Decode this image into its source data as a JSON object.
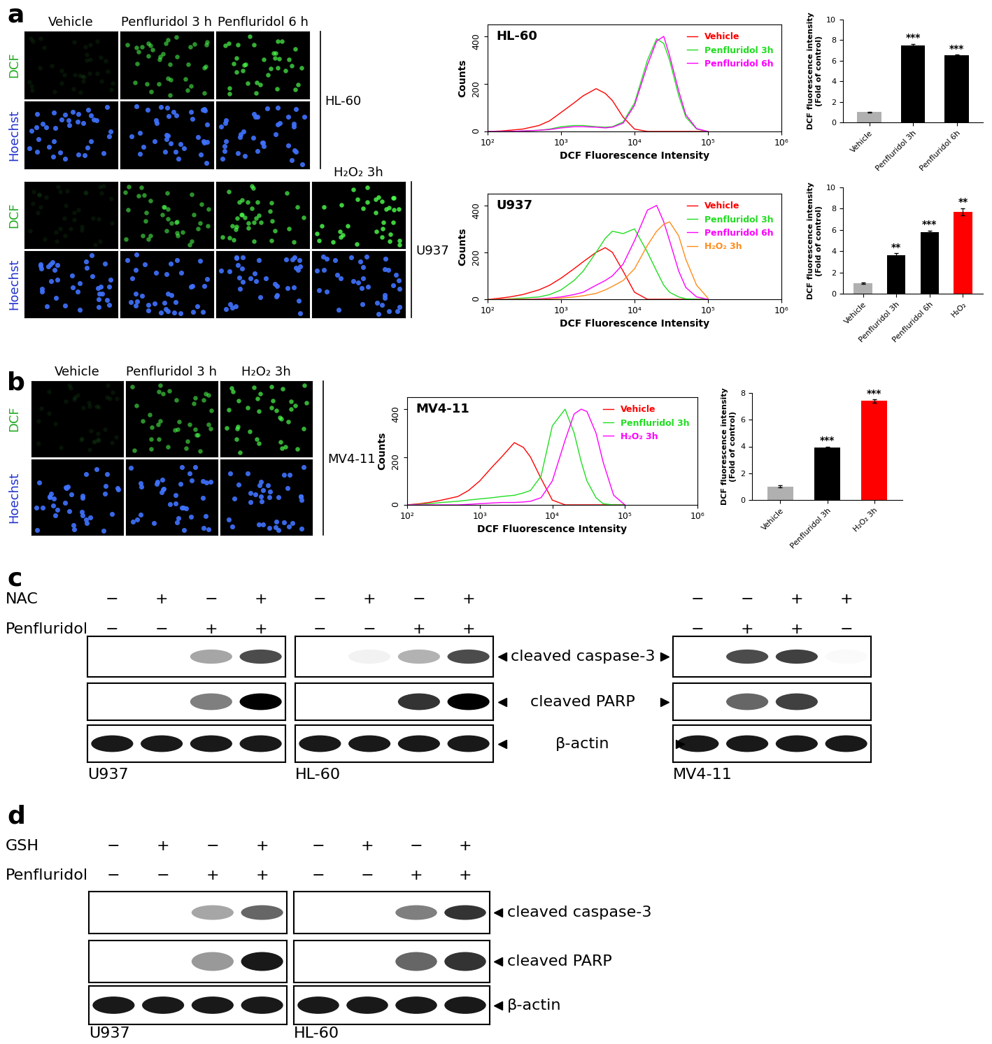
{
  "panel_labels": [
    "a",
    "b",
    "c",
    "d"
  ],
  "microscopy": [
    {
      "cell_line": "HL-60",
      "columns": [
        "Vehicle",
        "Penfluridol 3 h",
        "Penfluridol 6 h"
      ],
      "rows": [
        "DCF",
        "Hoechst"
      ]
    },
    {
      "cell_line": "U937",
      "columns": [
        null,
        null,
        null,
        "H₂O₂ 3h"
      ],
      "rows": [
        "DCF",
        "Hoechst"
      ]
    },
    {
      "cell_line": "MV4-11",
      "columns": [
        "Vehicle",
        "Penfluridol 3 h",
        "H₂O₂ 3h"
      ],
      "rows": [
        "DCF",
        "Hoechst"
      ]
    }
  ],
  "chart_data": [
    {
      "type": "line",
      "log": "x",
      "title": "HL-60",
      "xlabel": "DCF Fluorescence Intensity",
      "ylabel": "Counts",
      "x": [
        100,
        150,
        200,
        300,
        500,
        700,
        1000,
        1500,
        2000,
        3000,
        4000,
        5000,
        7000,
        10000,
        15000,
        20000,
        25000,
        30000,
        40000,
        50000,
        70000,
        100000
      ],
      "xlim": [
        100,
        1000000
      ],
      "xticks": [
        {
          "value": 100,
          "label": "10²"
        },
        {
          "value": 1000,
          "label": "10³"
        },
        {
          "value": 10000,
          "label": "10⁴"
        },
        {
          "value": 100000,
          "label": "10⁵"
        },
        {
          "value": 1000000,
          "label": "10⁶"
        }
      ],
      "ylim": [
        0,
        450
      ],
      "yticks": [
        0,
        200,
        400
      ],
      "legend": "upper right",
      "series": [
        {
          "name": "Vehicle",
          "color": "#ff0000",
          "values": [
            0,
            2,
            5,
            10,
            25,
            45,
            80,
            120,
            150,
            180,
            160,
            130,
            60,
            10,
            0,
            0,
            0,
            0,
            0,
            0,
            0,
            0
          ]
        },
        {
          "name": "Penfluridol 3h",
          "color": "#22dd22",
          "values": [
            0,
            0,
            0,
            2,
            5,
            10,
            20,
            25,
            25,
            20,
            18,
            20,
            40,
            120,
            300,
            390,
            370,
            300,
            150,
            60,
            10,
            0
          ]
        },
        {
          "name": "Penfluridol 6h",
          "color": "#ff00ff",
          "values": [
            0,
            0,
            0,
            2,
            5,
            8,
            15,
            20,
            20,
            18,
            15,
            18,
            35,
            110,
            280,
            380,
            400,
            320,
            170,
            70,
            12,
            0
          ]
        }
      ]
    },
    {
      "type": "bar",
      "ylabel": "DCF fluorescence intensity\n(Fold of control)",
      "categories": [
        "Vehicle",
        "Penfluridol 3h",
        "Penfluridol 6h"
      ],
      "values": [
        1,
        7.5,
        6.5
      ],
      "errors": [
        0.05,
        0.15,
        0.1
      ],
      "significance": [
        null,
        "***",
        "***"
      ],
      "colors": [
        "#b0b0b0",
        "#000000",
        "#000000"
      ],
      "ylim": [
        0,
        10
      ],
      "yticks": [
        0,
        2,
        4,
        6,
        8,
        10
      ]
    },
    {
      "type": "line",
      "log": "x",
      "title": "U937",
      "xlabel": "DCF Fluorescence Intensity",
      "ylabel": "Counts",
      "x": [
        100,
        150,
        200,
        300,
        500,
        700,
        1000,
        1500,
        2000,
        3000,
        4000,
        5000,
        7000,
        10000,
        15000,
        20000,
        25000,
        30000,
        40000,
        50000,
        70000,
        100000
      ],
      "xlim": [
        100,
        1000000
      ],
      "xticks": [
        {
          "value": 100,
          "label": "10²"
        },
        {
          "value": 1000,
          "label": "10³"
        },
        {
          "value": 10000,
          "label": "10⁴"
        },
        {
          "value": 100000,
          "label": "10⁵"
        },
        {
          "value": 1000000,
          "label": "10⁶"
        }
      ],
      "ylim": [
        0,
        450
      ],
      "yticks": [
        0,
        200,
        400
      ],
      "legend": "upper right",
      "series": [
        {
          "name": "Vehicle",
          "color": "#ff0000",
          "values": [
            0,
            5,
            10,
            20,
            40,
            60,
            90,
            130,
            160,
            200,
            220,
            200,
            120,
            30,
            0,
            0,
            0,
            0,
            0,
            0,
            0,
            0
          ]
        },
        {
          "name": "Penfluridol 3h",
          "color": "#22dd22",
          "values": [
            0,
            0,
            2,
            5,
            10,
            20,
            40,
            80,
            120,
            200,
            260,
            290,
            280,
            300,
            200,
            120,
            60,
            30,
            10,
            2,
            0,
            0
          ]
        },
        {
          "name": "Penfluridol 6h",
          "color": "#ff00ff",
          "values": [
            0,
            0,
            0,
            0,
            2,
            5,
            10,
            20,
            30,
            60,
            80,
            100,
            150,
            250,
            380,
            400,
            330,
            250,
            120,
            50,
            10,
            0
          ]
        },
        {
          "name": "H₂O₂ 3h",
          "color": "#ff8c1a",
          "values": [
            0,
            0,
            0,
            0,
            0,
            2,
            5,
            10,
            15,
            25,
            40,
            55,
            80,
            130,
            230,
            290,
            320,
            330,
            270,
            170,
            60,
            5
          ]
        }
      ]
    },
    {
      "type": "bar",
      "ylabel": "DCF fluorescence intensity\n(Fold of control)",
      "categories": [
        "Vehicle",
        "Penfluridol 3h",
        "Penfluridol 6h",
        "H₂O₂"
      ],
      "values": [
        1,
        3.6,
        5.8,
        7.7
      ],
      "errors": [
        0.05,
        0.2,
        0.15,
        0.35
      ],
      "significance": [
        null,
        "**",
        "***",
        "**"
      ],
      "colors": [
        "#b0b0b0",
        "#000000",
        "#000000",
        "#ff0000"
      ],
      "ylim": [
        0,
        10
      ],
      "yticks": [
        0,
        2,
        4,
        6,
        8,
        10
      ]
    },
    {
      "type": "line",
      "log": "x",
      "title": "MV4-11",
      "xlabel": "DCF Fluorescence Intensity",
      "ylabel": "Counts",
      "x": [
        100,
        150,
        200,
        300,
        500,
        700,
        1000,
        1500,
        2000,
        3000,
        4000,
        5000,
        7000,
        10000,
        15000,
        20000,
        25000,
        30000,
        40000,
        50000,
        70000,
        100000
      ],
      "xlim": [
        100,
        1000000
      ],
      "xticks": [
        {
          "value": 100,
          "label": "10²"
        },
        {
          "value": 1000,
          "label": "10³"
        },
        {
          "value": 10000,
          "label": "10⁴"
        },
        {
          "value": 100000,
          "label": "10⁵"
        },
        {
          "value": 1000000,
          "label": "10⁶"
        }
      ],
      "ylim": [
        0,
        450
      ],
      "yticks": [
        0,
        200,
        400
      ],
      "legend": "upper right",
      "series": [
        {
          "name": "Vehicle",
          "color": "#ff0000",
          "values": [
            0,
            5,
            10,
            20,
            35,
            60,
            100,
            160,
            200,
            260,
            240,
            200,
            110,
            20,
            0,
            0,
            0,
            0,
            0,
            0,
            0,
            0
          ]
        },
        {
          "name": "Penfluridol 3h",
          "color": "#22dd22",
          "values": [
            0,
            2,
            5,
            10,
            15,
            20,
            25,
            30,
            35,
            40,
            50,
            60,
            120,
            330,
            400,
            300,
            180,
            100,
            30,
            5,
            0,
            0
          ]
        },
        {
          "name": "H₂O₂ 3h",
          "color": "#ff00ff",
          "values": [
            0,
            0,
            0,
            0,
            0,
            2,
            5,
            8,
            10,
            10,
            12,
            15,
            30,
            100,
            270,
            380,
            400,
            390,
            300,
            180,
            40,
            0
          ]
        }
      ]
    },
    {
      "type": "bar",
      "ylabel": "DCF fluorescence intensity\n(Fold of control)",
      "categories": [
        "Vehicle",
        "Penfluridol 3h",
        "H₂O₂ 3h"
      ],
      "values": [
        1,
        3.9,
        7.4
      ],
      "errors": [
        0.08,
        0.1,
        0.12
      ],
      "significance": [
        null,
        "***",
        "***"
      ],
      "colors": [
        "#b0b0b0",
        "#000000",
        "#ff0000"
      ],
      "ylim": [
        0,
        8
      ],
      "yticks": [
        0,
        2,
        4,
        6,
        8
      ]
    }
  ],
  "blots": [
    {
      "treatment_names": [
        "NAC",
        "Penfluridol"
      ],
      "bands": [
        "cleaved caspase-3",
        "cleaved PARP",
        "β-actin"
      ],
      "blots": [
        {
          "cell_line": "U937",
          "signs": [
            [
              "−",
              "+",
              "−",
              "+"
            ],
            [
              "−",
              "−",
              "+",
              "+"
            ]
          ],
          "band_intensity": [
            [
              0,
              0,
              0.35,
              0.7
            ],
            [
              0,
              0,
              0.5,
              1.0
            ],
            [
              0.9,
              0.9,
              0.9,
              0.9
            ]
          ]
        },
        {
          "cell_line": "HL-60",
          "signs": [
            [
              "−",
              "+",
              "−",
              "+"
            ],
            [
              "−",
              "−",
              "+",
              "+"
            ]
          ],
          "band_intensity": [
            [
              0,
              0.05,
              0.3,
              0.7
            ],
            [
              0,
              0,
              0.8,
              1.0
            ],
            [
              0.9,
              0.9,
              0.9,
              0.9
            ]
          ]
        },
        {
          "cell_line": "MV4-11",
          "signs": [
            [
              "−",
              "−",
              "+",
              "+"
            ],
            [
              "−",
              "+",
              "+",
              "−"
            ]
          ],
          "band_intensity": [
            [
              0,
              0.7,
              0.75,
              0.02
            ],
            [
              0,
              0.6,
              0.75,
              0
            ],
            [
              0.9,
              0.9,
              0.9,
              0.9
            ]
          ]
        }
      ]
    },
    {
      "treatment_names": [
        "GSH",
        "Penfluridol"
      ],
      "bands": [
        "cleaved caspase-3",
        "cleaved PARP",
        "β-actin"
      ],
      "blots": [
        {
          "cell_line": "U937",
          "signs": [
            [
              "−",
              "+",
              "−",
              "+"
            ],
            [
              "−",
              "−",
              "+",
              "+"
            ]
          ],
          "band_intensity": [
            [
              0,
              0,
              0.35,
              0.6
            ],
            [
              0,
              0,
              0.4,
              0.9
            ],
            [
              0.9,
              0.9,
              0.9,
              0.9
            ]
          ]
        },
        {
          "cell_line": "HL-60",
          "signs": [
            [
              "−",
              "+",
              "−",
              "+"
            ],
            [
              "−",
              "−",
              "+",
              "+"
            ]
          ],
          "band_intensity": [
            [
              0,
              0,
              0.5,
              0.8
            ],
            [
              0,
              0,
              0.6,
              0.8
            ],
            [
              0.9,
              0.9,
              0.9,
              0.9
            ]
          ]
        }
      ]
    }
  ]
}
